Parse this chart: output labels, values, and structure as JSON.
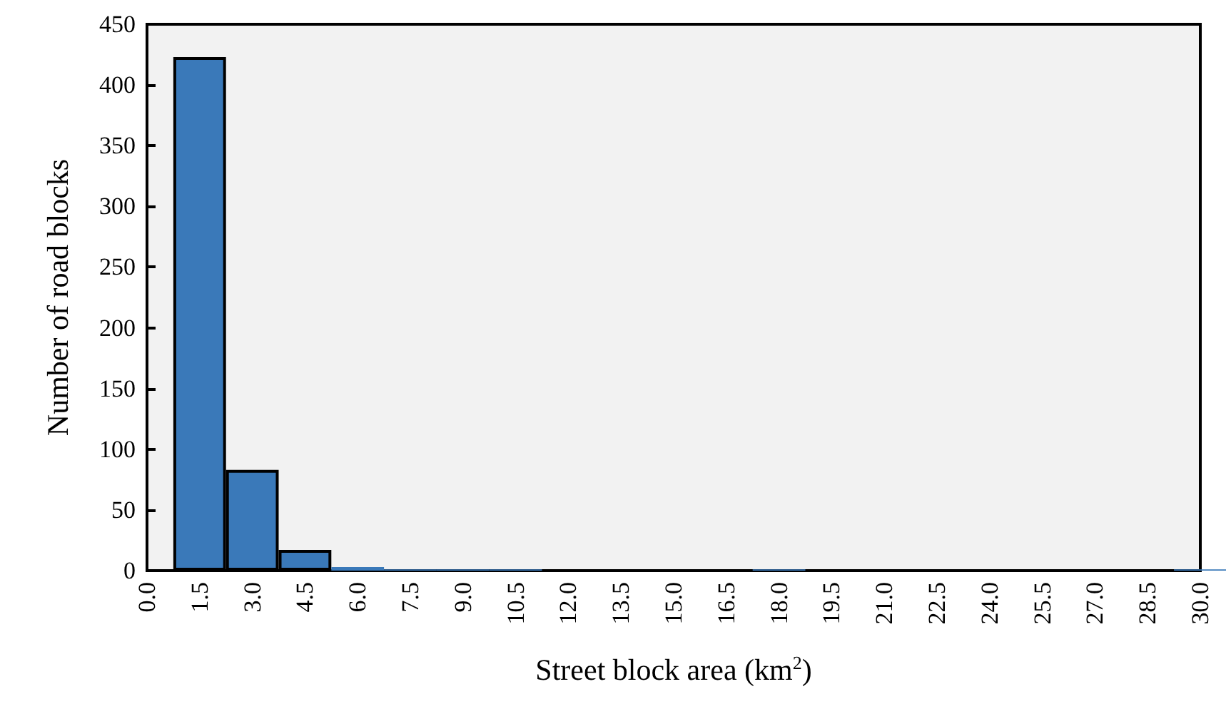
{
  "chart_data": {
    "type": "bar",
    "xlabel": "Street block area (km$^{2}$)",
    "ylabel": "Number of road blocks",
    "categories": [
      "0.0",
      "1.5",
      "3.0",
      "4.5",
      "6.0",
      "7.5",
      "9.0",
      "10.5",
      "12.0",
      "13.5",
      "15.0",
      "16.5",
      "18.0",
      "19.5",
      "21.0",
      "22.5",
      "24.0",
      "25.5",
      "27.0",
      "28.5",
      "30.0"
    ],
    "values": [
      0,
      423,
      83,
      17,
      3,
      1,
      1,
      1,
      0,
      0,
      0,
      0,
      1,
      0,
      0,
      0,
      0,
      0,
      0,
      0,
      1
    ],
    "color": "#3a79b9",
    "ylim": [
      0,
      450
    ],
    "yticks": [
      0,
      50,
      100,
      150,
      200,
      250,
      300,
      350,
      400,
      450
    ],
    "grid": false
  }
}
